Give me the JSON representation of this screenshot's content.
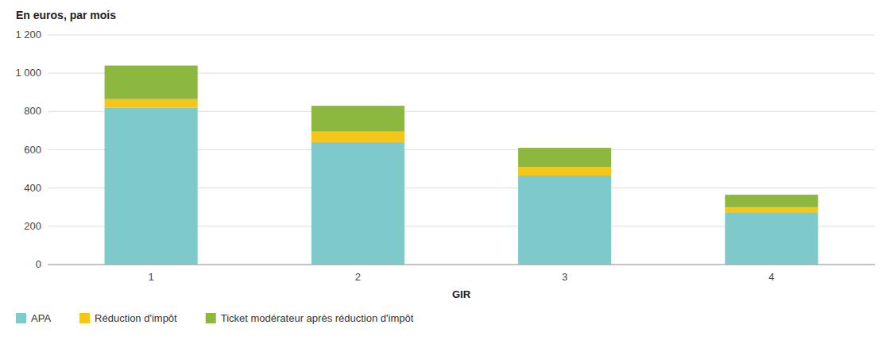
{
  "chart_data": {
    "type": "bar",
    "stacked": true,
    "title": "En euros, par mois",
    "x_label": "GIR",
    "categories": [
      "1",
      "2",
      "3",
      "4"
    ],
    "series": [
      {
        "name": "APA",
        "color": "#7ecaca",
        "values": [
          820,
          640,
          465,
          270
        ]
      },
      {
        "name": "Réduction d'impôt",
        "color": "#f5c518",
        "values": [
          45,
          55,
          45,
          30
        ]
      },
      {
        "name": "Ticket modérateur après réduction d'impôt",
        "color": "#8db840",
        "values": [
          175,
          135,
          100,
          65
        ]
      }
    ],
    "ylim": [
      0,
      1200
    ],
    "yticks": [
      0,
      200,
      400,
      600,
      800,
      {
        "value": 1000,
        "label": "1 000"
      },
      {
        "value": 1200,
        "label": "1 200"
      }
    ],
    "grid": true,
    "legend": "bottom"
  }
}
